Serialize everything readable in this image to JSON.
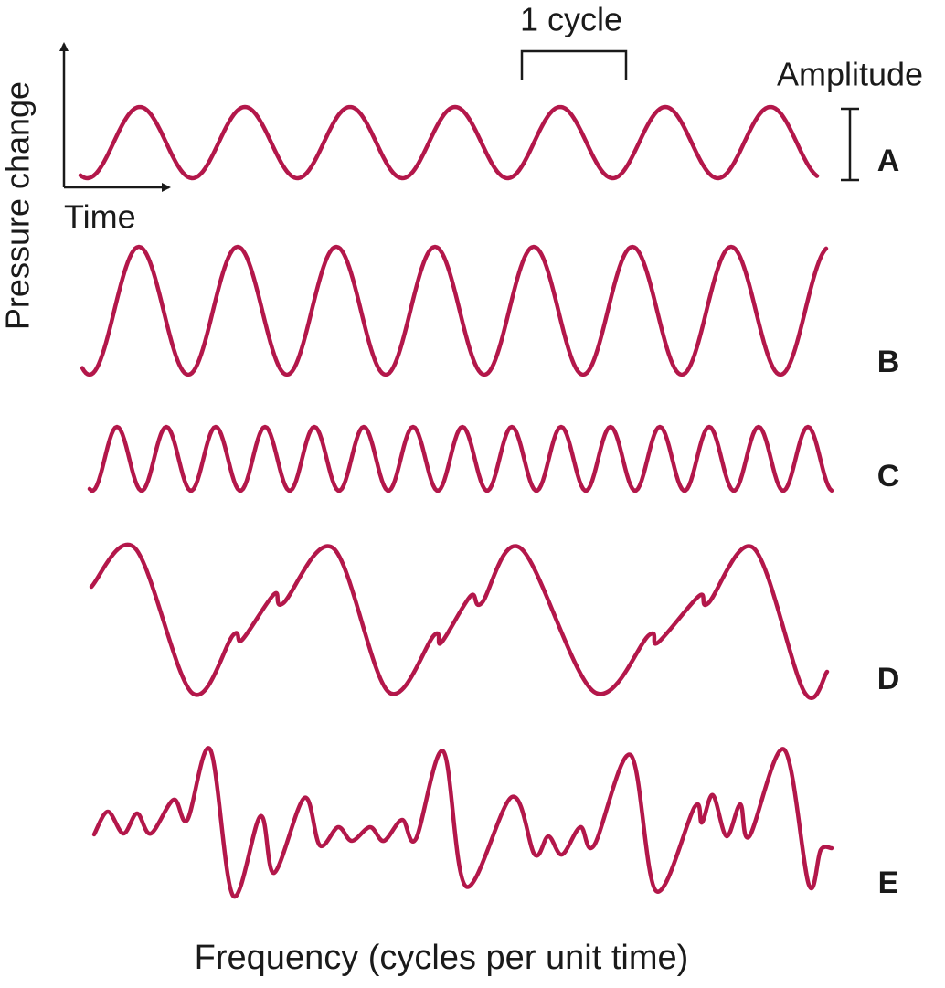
{
  "labels": {
    "cycle": "1 cycle",
    "amplitude": "Amplitude",
    "y_axis": "Pressure change",
    "x_axis": "Time",
    "footer": "Frequency (cycles per unit time)"
  },
  "waves": [
    {
      "label": "A"
    },
    {
      "label": "B"
    },
    {
      "label": "C"
    },
    {
      "label": "D"
    },
    {
      "label": "E"
    }
  ]
}
